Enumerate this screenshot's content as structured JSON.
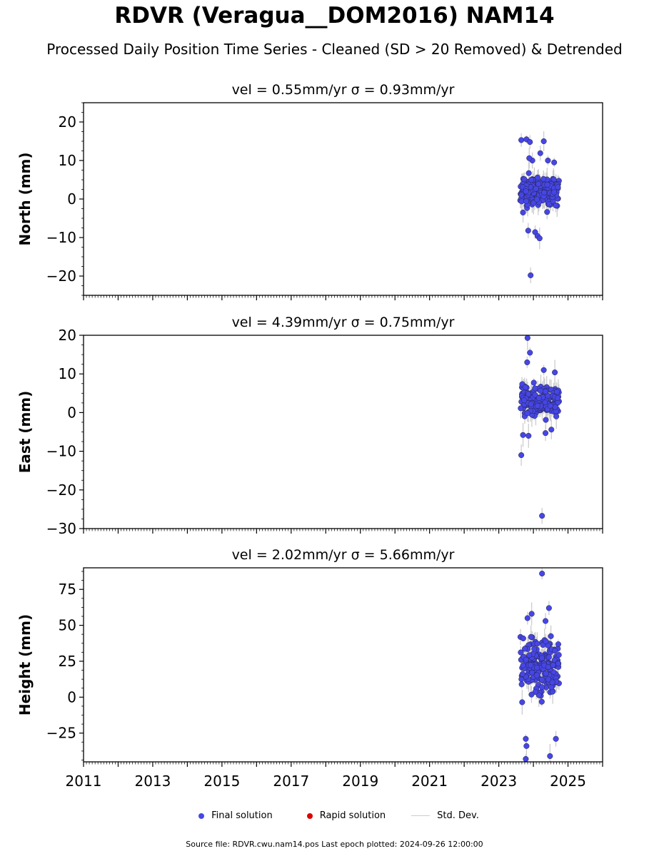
{
  "title": "RDVR (Veragua__DOM2016) NAM14",
  "subtitle": "Processed Daily Position Time Series - Cleaned (SD > 20 Removed) & Detrended",
  "legend": {
    "final": "Final solution",
    "rapid": "Rapid solution",
    "std": "Std. Dev."
  },
  "footer": "Source file: RDVR.cwu.nam14.pos  Last epoch plotted: 2024-09-26 12:00:00",
  "colors": {
    "final": "#4646e6",
    "rapid": "#dd0000",
    "std": "#cccccc"
  },
  "chart_data": [
    {
      "type": "scatter",
      "title": "vel = 0.55mm/yr   σ = 0.93mm/yr",
      "ylabel": "North (mm)",
      "xlim": [
        2011,
        2026
      ],
      "ylim": [
        -25,
        25
      ],
      "yticks": [
        -20,
        -10,
        0,
        10,
        20
      ],
      "ytick_labels": [
        "−20",
        "−10",
        "0",
        "10",
        "20"
      ],
      "data_range": [
        2023.62,
        2024.74
      ],
      "typical_range": [
        -4,
        8
      ],
      "outliers": [
        [
          2023.65,
          15.3
        ],
        [
          2023.8,
          15.5
        ],
        [
          2023.9,
          14.8
        ],
        [
          2024.3,
          15.0
        ],
        [
          2023.97,
          10.0
        ],
        [
          2024.2,
          11.9
        ],
        [
          2023.88,
          10.6
        ],
        [
          2023.7,
          -3.5
        ],
        [
          2023.85,
          -8.2
        ],
        [
          2024.05,
          -8.6
        ],
        [
          2024.12,
          -9.6
        ],
        [
          2024.18,
          -10.2
        ],
        [
          2023.92,
          -19.8
        ],
        [
          2024.42,
          10.0
        ],
        [
          2024.6,
          9.5
        ]
      ]
    },
    {
      "type": "scatter",
      "title": "vel = 4.39mm/yr   σ = 0.75mm/yr",
      "ylabel": "East (mm)",
      "xlim": [
        2011,
        2026
      ],
      "ylim": [
        -30,
        20
      ],
      "yticks": [
        -30,
        -20,
        -10,
        0,
        10,
        20
      ],
      "ytick_labels": [
        "−30",
        "−20",
        "−10",
        "0",
        "10",
        "20"
      ],
      "data_range": [
        2023.62,
        2024.74
      ],
      "typical_range": [
        -3,
        9
      ],
      "outliers": [
        [
          2023.83,
          19.3
        ],
        [
          2023.9,
          15.5
        ],
        [
          2023.82,
          13.0
        ],
        [
          2023.65,
          -11.0
        ],
        [
          2023.7,
          -5.8
        ],
        [
          2023.86,
          -6.0
        ],
        [
          2024.25,
          -26.7
        ],
        [
          2024.35,
          -5.3
        ],
        [
          2024.52,
          -4.4
        ],
        [
          2024.3,
          11.0
        ],
        [
          2024.62,
          10.4
        ]
      ]
    },
    {
      "type": "scatter",
      "title": "vel = 2.02mm/yr   σ = 5.66mm/yr",
      "ylabel": "Height (mm)",
      "xlim": [
        2011,
        2026
      ],
      "ylim": [
        -45,
        90
      ],
      "yticks": [
        -25,
        0,
        25,
        50,
        75
      ],
      "ytick_labels": [
        "−25",
        "0",
        "25",
        "50",
        "75"
      ],
      "xticks": [
        2011,
        2013,
        2015,
        2017,
        2019,
        2021,
        2023,
        2025
      ],
      "xtick_labels": [
        "2011",
        "2013",
        "2015",
        "2017",
        "2019",
        "2021",
        "2023",
        "2025"
      ],
      "data_range": [
        2023.62,
        2024.74
      ],
      "typical_range": [
        -8,
        48
      ],
      "outliers": [
        [
          2024.25,
          86.0
        ],
        [
          2023.83,
          55.0
        ],
        [
          2023.95,
          58.0
        ],
        [
          2024.45,
          62.0
        ],
        [
          2023.78,
          -29.0
        ],
        [
          2023.8,
          -34.0
        ],
        [
          2023.78,
          -43.0
        ],
        [
          2024.48,
          -41.0
        ],
        [
          2024.65,
          -29.0
        ],
        [
          2024.35,
          53.0
        ]
      ]
    }
  ]
}
